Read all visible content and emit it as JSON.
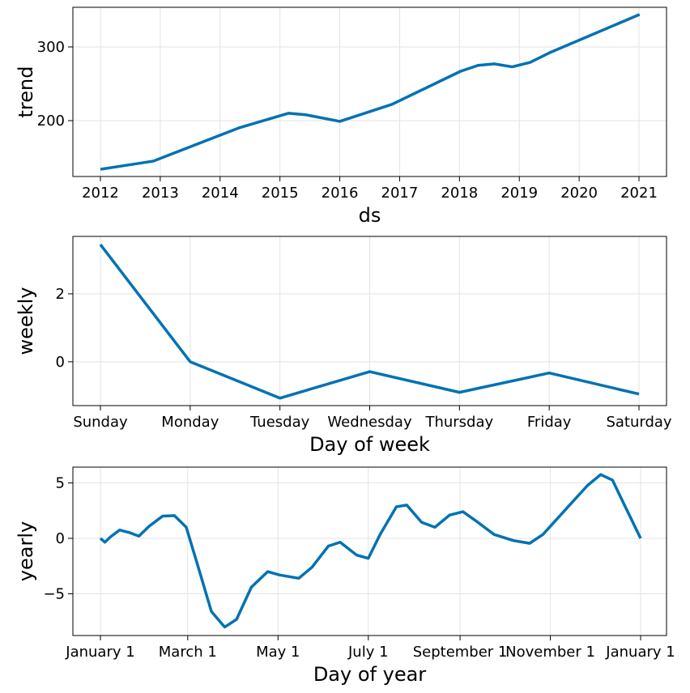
{
  "chart_data": [
    {
      "type": "line",
      "ylabel": "trend",
      "xlabel": "ds",
      "color": "#0072B2",
      "grid": true,
      "x": [
        2012.0,
        2012.88,
        2014.31,
        2015.14,
        2015.43,
        2016.0,
        2016.87,
        2018.02,
        2018.31,
        2018.58,
        2018.88,
        2019.18,
        2019.53,
        2021.01
      ],
      "values": [
        134,
        145,
        190,
        210,
        208,
        199,
        222,
        267,
        275,
        277,
        273,
        279,
        293,
        344
      ],
      "xlim": [
        2011.54,
        2021.46
      ],
      "xticks": [
        2012,
        2013,
        2014,
        2015,
        2016,
        2017,
        2018,
        2019,
        2020,
        2021
      ],
      "ylim": [
        124.2,
        353.8
      ],
      "yticks": [
        200,
        300
      ]
    },
    {
      "type": "line",
      "ylabel": "weekly",
      "xlabel": "Day of week",
      "color": "#0072B2",
      "grid": true,
      "categories": [
        "Sunday",
        "Monday",
        "Tuesday",
        "Wednesday",
        "Thursday",
        "Friday",
        "Saturday"
      ],
      "values": [
        3.45,
        0.0,
        -1.07,
        -0.29,
        -0.9,
        -0.33,
        -0.95
      ],
      "ylim": [
        -1.29,
        3.69
      ],
      "yticks": [
        0,
        2
      ]
    },
    {
      "type": "line",
      "ylabel": "yearly",
      "xlabel": "Day of year",
      "color": "#0072B2",
      "grid": true,
      "x": [
        0,
        3,
        7,
        13,
        20,
        26,
        33,
        42,
        50,
        58,
        66,
        75,
        84,
        92,
        102,
        113,
        121,
        134,
        143,
        154,
        162,
        173,
        181,
        189,
        200,
        207,
        217,
        226,
        236,
        245,
        255,
        266,
        279,
        290,
        299,
        315,
        329,
        338,
        346,
        353,
        365
      ],
      "values": [
        0,
        -0.35,
        0.15,
        0.75,
        0.5,
        0.2,
        1.1,
        2.0,
        2.05,
        1.0,
        -2.55,
        -6.6,
        -8.0,
        -7.3,
        -4.4,
        -3.0,
        -3.3,
        -3.6,
        -2.6,
        -0.7,
        -0.35,
        -1.5,
        -1.8,
        0.35,
        2.85,
        3.0,
        1.45,
        1.0,
        2.1,
        2.4,
        1.45,
        0.35,
        -0.2,
        -0.45,
        0.35,
        2.7,
        4.75,
        5.75,
        5.25,
        3.3,
        0
      ],
      "xlim": [
        -18.6,
        382.5
      ],
      "xticks": [
        {
          "value": 0,
          "label": "January 1"
        },
        {
          "value": 59,
          "label": "March 1"
        },
        {
          "value": 120,
          "label": "May 1"
        },
        {
          "value": 181,
          "label": "July 1"
        },
        {
          "value": 243,
          "label": "September 1"
        },
        {
          "value": 304,
          "label": "November 1"
        },
        {
          "value": 365,
          "label": "January 1"
        }
      ],
      "ylim": [
        -8.76,
        6.42
      ],
      "yticks": [
        {
          "value": -5,
          "label": "−5"
        },
        0,
        5
      ]
    }
  ]
}
